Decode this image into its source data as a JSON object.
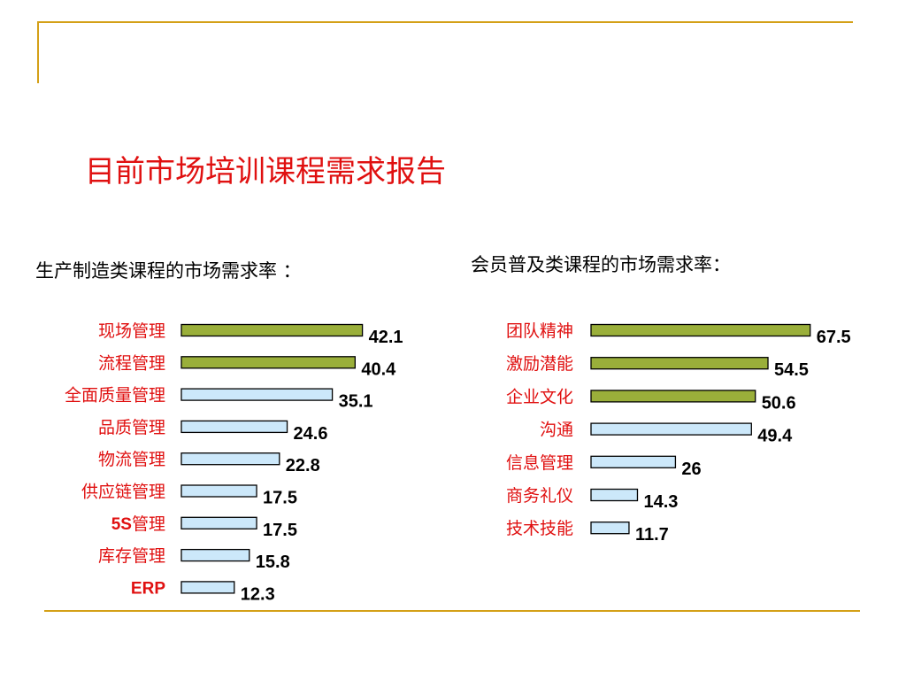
{
  "title": "目前市场培训课程需求报告",
  "colors": {
    "accent": "#e01010",
    "decor": "#d4a017",
    "bar_green": "#9aaf3a",
    "bar_blue": "#cce8fa",
    "bar_stroke": "#000000"
  },
  "chart_data": [
    {
      "type": "bar",
      "orientation": "horizontal",
      "title": "生产制造类课程的市场需求率 ：",
      "categories": [
        "现场管理",
        "流程管理",
        "全面质量管理",
        "品质管理",
        "物流管理",
        "供应链管理",
        "5S管理",
        "库存管理",
        "ERP"
      ],
      "values": [
        42.1,
        40.4,
        35.1,
        24.6,
        22.8,
        17.5,
        17.5,
        15.8,
        12.3
      ],
      "value_labels": [
        "42.1",
        "40.4",
        "35.1",
        "24.6",
        "22.8",
        "17.5",
        "17.5",
        "15.8",
        "12.3"
      ],
      "highlight_count": 2,
      "grid": false,
      "legend": "none"
    },
    {
      "type": "bar",
      "orientation": "horizontal",
      "title": "会员普及类课程的市场需求率：",
      "categories": [
        "团队精神",
        "激励潜能",
        "企业文化",
        "沟通",
        "信息管理",
        "商务礼仪",
        "技术技能"
      ],
      "values": [
        67.5,
        54.5,
        50.6,
        49.4,
        26,
        14.3,
        11.7
      ],
      "value_labels": [
        "67.5",
        "54.5",
        "50.6",
        "49.4",
        "26",
        "14.3",
        "11.7"
      ],
      "highlight_count": 3,
      "grid": false,
      "legend": "none"
    }
  ]
}
